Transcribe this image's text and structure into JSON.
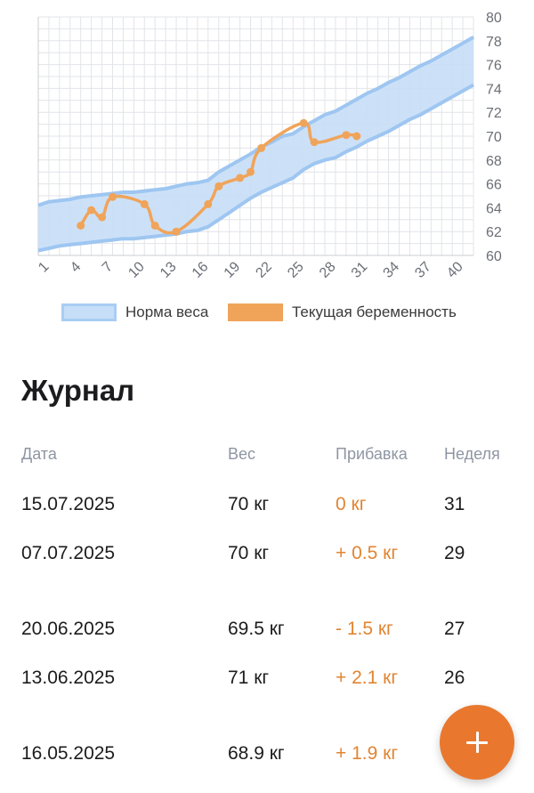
{
  "chart_data": {
    "type": "area",
    "x_ticks": [
      1,
      4,
      7,
      10,
      13,
      16,
      19,
      22,
      25,
      28,
      31,
      34,
      37,
      40
    ],
    "y_ticks": [
      60,
      62,
      64,
      66,
      68,
      70,
      72,
      74,
      76,
      78,
      80
    ],
    "xlim": [
      1,
      42
    ],
    "ylim": [
      60,
      80
    ],
    "grid": true,
    "y_axis_side": "right",
    "legend_position": "bottom",
    "series": [
      {
        "name": "Норма веса",
        "kind": "band",
        "color": "#c6def7",
        "x": [
          1,
          2,
          3,
          4,
          5,
          6,
          7,
          8,
          9,
          10,
          11,
          12,
          13,
          14,
          15,
          16,
          17,
          18,
          19,
          20,
          21,
          22,
          23,
          24,
          25,
          26,
          27,
          28,
          29,
          30,
          31,
          32,
          33,
          34,
          35,
          36,
          37,
          38,
          39,
          40,
          41,
          42
        ],
        "upper": [
          64.2,
          64.5,
          64.6,
          64.7,
          64.9,
          65.0,
          65.1,
          65.2,
          65.3,
          65.3,
          65.4,
          65.5,
          65.6,
          65.8,
          66.0,
          66.1,
          66.3,
          67.0,
          67.5,
          68.0,
          68.5,
          69.1,
          69.5,
          70.0,
          70.2,
          70.8,
          71.3,
          71.8,
          72.1,
          72.6,
          73.1,
          73.6,
          74.0,
          74.5,
          74.9,
          75.4,
          75.9,
          76.3,
          76.8,
          77.3,
          77.8,
          78.3
        ],
        "lower": [
          60.4,
          60.6,
          60.8,
          60.9,
          61.0,
          61.1,
          61.2,
          61.3,
          61.4,
          61.4,
          61.5,
          61.6,
          61.7,
          61.8,
          62.0,
          62.1,
          62.4,
          63.0,
          63.6,
          64.2,
          64.8,
          65.3,
          65.7,
          66.1,
          66.5,
          67.2,
          67.7,
          68.0,
          68.2,
          68.7,
          69.1,
          69.6,
          70.0,
          70.4,
          70.9,
          71.4,
          71.8,
          72.3,
          72.8,
          73.3,
          73.8,
          74.3
        ]
      },
      {
        "name": "Текущая беременность",
        "kind": "line",
        "color": "#f0a45a",
        "x": [
          5,
          6,
          7,
          8,
          11,
          12,
          14,
          17,
          18,
          20,
          21,
          22,
          26,
          27,
          30,
          31
        ],
        "y": [
          62.5,
          63.8,
          63.2,
          64.9,
          64.3,
          62.5,
          62.0,
          64.3,
          65.8,
          66.5,
          67.0,
          69.0,
          71.1,
          69.5,
          70.1,
          70.0
        ]
      }
    ]
  },
  "legend": {
    "norm_label": "Норма веса",
    "current_label": "Текущая беременность"
  },
  "journal": {
    "title": "Журнал",
    "headers": {
      "date": "Дата",
      "weight": "Вес",
      "gain": "Прибавка",
      "week": "Неделя"
    },
    "rows": [
      {
        "date": "15.07.2025",
        "weight": "70 кг",
        "gain": "0 кг",
        "week": "31"
      },
      {
        "date": "07.07.2025",
        "weight": "70 кг",
        "gain": "+ 0.5 кг",
        "week": "29"
      },
      {
        "date": "20.06.2025",
        "weight": "69.5 кг",
        "gain": "- 1.5 кг",
        "week": "27"
      },
      {
        "date": "13.06.2025",
        "weight": "71 кг",
        "gain": "+ 2.1 кг",
        "week": "26"
      },
      {
        "date": "16.05.2025",
        "weight": "68.9 кг",
        "gain": "+ 1.9 кг",
        "week": ""
      }
    ]
  },
  "fab": {
    "icon": "plus-icon",
    "color": "#e9782e"
  }
}
